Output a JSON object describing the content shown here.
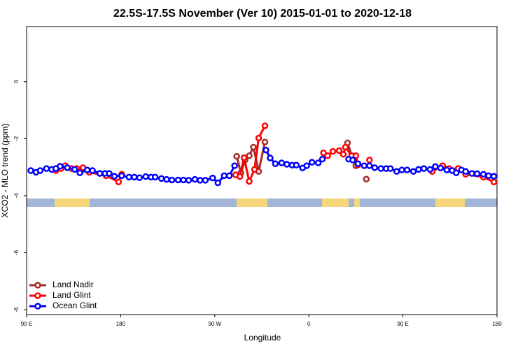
{
  "chart_data": {
    "type": "line",
    "title": "22.5S-17.5S November (Ver 10)   2015-01-01 to 2020-12-18",
    "x_label": "Longitude",
    "y_label": "XCO2 - MLO trend (ppm)",
    "xlim": [
      90,
      540
    ],
    "xticks": [
      {
        "value": 90,
        "label": "90 E"
      },
      180,
      {
        "value": 270,
        "label": "90 W"
      },
      {
        "value": 360,
        "label": "0"
      },
      {
        "value": 450,
        "label": "90 E"
      },
      {
        "value": 540,
        "label": "180"
      }
    ],
    "ylim": [
      -8.17,
      1.93
    ],
    "yticks": [
      -8,
      -6,
      -4,
      -2,
      0
    ],
    "legend": "bottom-left",
    "series": [
      {
        "name": "Land Nadir",
        "color": "#a52a2a",
        "x": [
          291,
          295,
          299,
          303,
          307,
          312,
          318,
          null,
          397,
          402,
          405,
          null,
          415
        ],
        "values": [
          -2.62,
          -3.2,
          -2.75,
          -2.6,
          -2.3,
          -3.15,
          -2.12,
          null,
          -2.15,
          -2.7,
          -2.95,
          null,
          -3.42
        ]
      },
      {
        "name": "Land Glint",
        "color": "#ff0000",
        "x": [
          118,
          123,
          127,
          133,
          138,
          144,
          150,
          166,
          178,
          181,
          null,
          290,
          294,
          298,
          303,
          308,
          312,
          318,
          null,
          374,
          378,
          383,
          389,
          393,
          395,
          401,
          405,
          407,
          null,
          418,
          null,
          478,
          488,
          494,
          503,
          510,
          527,
          537
        ],
        "values": [
          -3.12,
          -3.05,
          -2.95,
          -3.05,
          -3.05,
          -3.02,
          -3.18,
          -3.3,
          -3.52,
          -3.25,
          null,
          -3.27,
          -3.33,
          -2.67,
          -3.5,
          -3.08,
          -1.98,
          -1.55,
          null,
          -2.5,
          -2.6,
          -2.45,
          -2.42,
          -2.55,
          -2.3,
          -2.6,
          -2.6,
          -2.92,
          null,
          -2.75,
          null,
          -3.15,
          -2.95,
          -3.05,
          -3.05,
          -3.25,
          -3.35,
          -3.52
        ]
      },
      {
        "name": "Ocean Glint",
        "color": "#0000ff",
        "x": [
          94,
          99,
          103,
          109,
          114,
          118,
          122,
          129,
          136,
          141,
          148,
          153,
          160,
          165,
          169,
          174,
          181,
          188,
          193,
          198,
          204,
          209,
          213,
          219,
          224,
          229,
          235,
          240,
          245,
          251,
          256,
          261,
          268,
          273,
          279,
          284,
          289,
          null,
          319,
          323,
          328,
          334,
          339,
          344,
          348,
          354,
          358,
          363,
          369,
          373,
          null,
          398,
          402,
          407,
          413,
          418,
          423,
          429,
          434,
          438,
          444,
          449,
          454,
          460,
          465,
          470,
          476,
          481,
          486,
          492,
          497,
          501,
          506,
          510,
          516,
          521,
          527,
          532,
          537
        ],
        "values": [
          -3.12,
          -3.18,
          -3.12,
          -3.05,
          -3.08,
          -3.05,
          -2.97,
          -3.02,
          -3.08,
          -3.2,
          -3.1,
          -3.12,
          -3.22,
          -3.22,
          -3.22,
          -3.32,
          -3.3,
          -3.35,
          -3.35,
          -3.37,
          -3.33,
          -3.35,
          -3.35,
          -3.4,
          -3.43,
          -3.45,
          -3.45,
          -3.45,
          -3.46,
          -3.43,
          -3.46,
          -3.46,
          -3.38,
          -3.55,
          -3.3,
          -3.3,
          -2.95,
          null,
          -2.4,
          -2.68,
          -2.88,
          -2.85,
          -2.9,
          -2.93,
          -2.93,
          -3.03,
          -2.95,
          -2.83,
          -2.85,
          -2.72,
          null,
          -2.72,
          -2.75,
          -2.88,
          -2.95,
          -2.95,
          -3.02,
          -3.05,
          -3.05,
          -3.05,
          -3.15,
          -3.1,
          -3.1,
          -3.15,
          -3.08,
          -3.05,
          -3.08,
          -2.98,
          -3.03,
          -3.1,
          -3.12,
          -3.2,
          -3.1,
          -3.15,
          -3.22,
          -3.23,
          -3.25,
          -3.3,
          -3.32
        ]
      }
    ]
  }
}
